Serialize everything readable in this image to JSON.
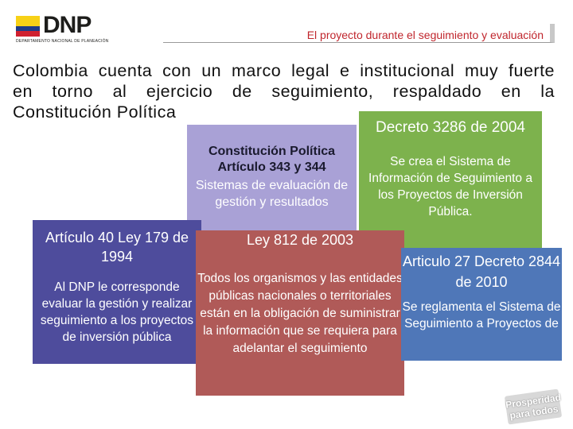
{
  "header": {
    "logo_text": "DNP",
    "logo_subtitle": "DEPARTAMENTO NACIONAL DE PLANEACIÓN",
    "title": "El proyecto durante el seguimiento y evaluación"
  },
  "intro": {
    "line1": "Colombia cuenta con un marco legal e institucional muy fuerte",
    "line2": "en torno al ejercicio de seguimiento, respaldado en la",
    "line3": "Constitución Política"
  },
  "boxes": {
    "constitucion": {
      "heading": "Constitución Política Artículo 343 y 344",
      "body": "Sistemas de evaluación de gestión y resultados"
    },
    "decreto3286": {
      "heading": "Decreto 3286 de 2004",
      "body": "Se crea el Sistema de Información de Seguimiento a los Proyectos de Inversión Pública."
    },
    "ley179": {
      "heading": "Artículo 40 Ley 179 de 1994",
      "body": "Al DNP le corresponde evaluar la gestión y realizar seguimiento a los proyectos de inversión pública"
    },
    "ley812": {
      "heading": "Ley 812 de 2003",
      "body": "Todos los organismos y las entidades públicas nacionales o territoriales están en la obligación de suministrar la información que se requiera para adelantar el seguimiento"
    },
    "decreto2844": {
      "heading": "Articulo 27 Decreto 2844 de 2010",
      "body": "Se reglamenta el Sistema de Seguimiento a Proyectos de"
    }
  },
  "badge": {
    "line1": "Prosperidad",
    "line2": "para todos"
  },
  "colors": {
    "accent_red": "#c0262d",
    "green": "#7db24d",
    "purple": "#4e4c9c",
    "lavender": "#8c82c8",
    "brick": "#b05a58",
    "blue": "#4f77b8"
  }
}
